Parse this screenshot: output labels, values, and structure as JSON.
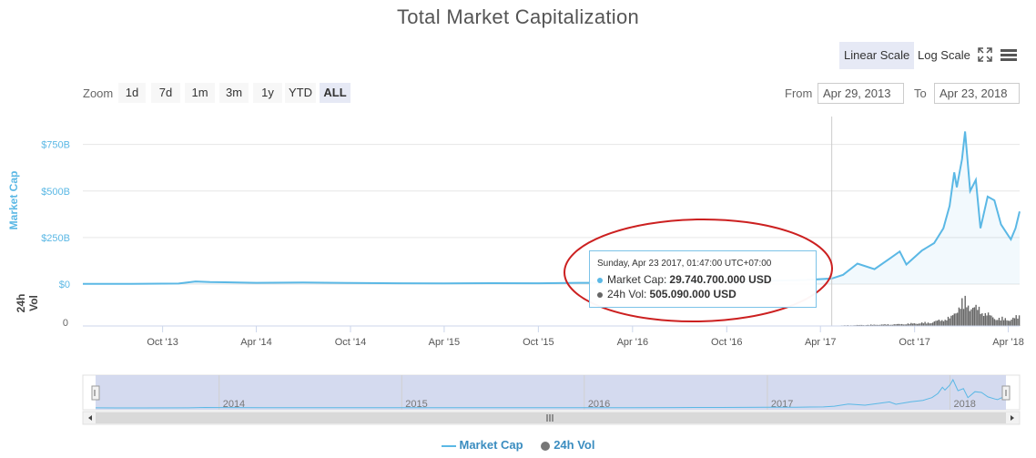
{
  "title": "Total Market Capitalization",
  "toolbar": {
    "linear_label": "Linear Scale",
    "log_label": "Log Scale",
    "fullscreen_icon": "fullscreen-icon",
    "menu_icon": "menu-icon"
  },
  "zoom": {
    "label": "Zoom",
    "options": [
      "1d",
      "7d",
      "1m",
      "3m",
      "1y",
      "YTD",
      "ALL"
    ],
    "selected": "ALL"
  },
  "range": {
    "from_label": "From",
    "from_value": "Apr 29, 2013",
    "to_label": "To",
    "to_value": "Apr 23, 2018"
  },
  "tooltip": {
    "date": "Sunday, Apr 23 2017, 01:47:00 UTC+07:00",
    "market_cap_label": "Market Cap:",
    "market_cap_value": "29.740.700.000 USD",
    "volume_label": "24h Vol:",
    "volume_value": "505.090.000 USD"
  },
  "legend": {
    "market_cap": "Market Cap",
    "volume": "24h Vol"
  },
  "colors": {
    "market_cap": "#5bb8e5",
    "volume": "#666666",
    "annotation": "#cc2020",
    "navigator_mask": "#ccd3ec"
  },
  "chart_data": {
    "type": "area",
    "title": "Total Market Capitalization",
    "x_tick_labels": [
      "Oct '13",
      "Apr '14",
      "Oct '14",
      "Apr '15",
      "Oct '15",
      "Apr '16",
      "Oct '16",
      "Apr '17",
      "Oct '17",
      "Apr '18"
    ],
    "navigator_labels": [
      "2014",
      "2015",
      "2016",
      "2017",
      "2018"
    ],
    "y_axis": {
      "label": "Market Cap",
      "tick_labels": [
        "$0",
        "$250B",
        "$500B",
        "$750B"
      ],
      "unit": "billion USD",
      "range": [
        0,
        900
      ]
    },
    "y2_axis": {
      "label": "24h Vol",
      "tick_labels": [
        "0"
      ]
    },
    "x_range": [
      "2013-04-29",
      "2018-04-23"
    ],
    "grid": true,
    "series": [
      {
        "name": "Market Cap",
        "values": [
          [
            "2013-04-29",
            1.6
          ],
          [
            "2013-08-01",
            1.3
          ],
          [
            "2013-11-01",
            3.0
          ],
          [
            "2013-12-04",
            14.0
          ],
          [
            "2014-01-01",
            11.0
          ],
          [
            "2014-04-01",
            7.0
          ],
          [
            "2014-07-01",
            9.0
          ],
          [
            "2014-10-01",
            6.0
          ],
          [
            "2015-01-01",
            4.5
          ],
          [
            "2015-04-01",
            4.0
          ],
          [
            "2015-07-01",
            5.0
          ],
          [
            "2015-10-01",
            4.5
          ],
          [
            "2016-01-01",
            7.0
          ],
          [
            "2016-04-01",
            7.5
          ],
          [
            "2016-07-01",
            11.0
          ],
          [
            "2016-10-01",
            12.0
          ],
          [
            "2017-01-01",
            18.0
          ],
          [
            "2017-03-01",
            22.0
          ],
          [
            "2017-04-23",
            29.7
          ],
          [
            "2017-05-15",
            50.0
          ],
          [
            "2017-06-12",
            110.0
          ],
          [
            "2017-07-15",
            80.0
          ],
          [
            "2017-08-15",
            140.0
          ],
          [
            "2017-09-02",
            175.0
          ],
          [
            "2017-09-15",
            105.0
          ],
          [
            "2017-10-15",
            180.0
          ],
          [
            "2017-11-08",
            220.0
          ],
          [
            "2017-11-26",
            300.0
          ],
          [
            "2017-12-08",
            420.0
          ],
          [
            "2017-12-17",
            600.0
          ],
          [
            "2017-12-22",
            520.0
          ],
          [
            "2018-01-01",
            670.0
          ],
          [
            "2018-01-07",
            820.0
          ],
          [
            "2018-01-17",
            500.0
          ],
          [
            "2018-01-28",
            560.0
          ],
          [
            "2018-02-06",
            300.0
          ],
          [
            "2018-02-20",
            470.0
          ],
          [
            "2018-03-05",
            450.0
          ],
          [
            "2018-03-18",
            320.0
          ],
          [
            "2018-04-01",
            260.0
          ],
          [
            "2018-04-06",
            240.0
          ],
          [
            "2018-04-15",
            300.0
          ],
          [
            "2018-04-23",
            390.0
          ]
        ]
      },
      {
        "name": "24h Vol",
        "values": [
          [
            "2017-04-23",
            0.5
          ],
          [
            "2017-07-01",
            1.5
          ],
          [
            "2017-09-01",
            2.5
          ],
          [
            "2017-11-01",
            5.0
          ],
          [
            "2017-12-10",
            12.0
          ],
          [
            "2017-12-22",
            25.0
          ],
          [
            "2018-01-05",
            35.0
          ],
          [
            "2018-01-17",
            28.0
          ],
          [
            "2018-02-06",
            22.0
          ],
          [
            "2018-03-01",
            12.0
          ],
          [
            "2018-04-01",
            9.0
          ],
          [
            "2018-04-23",
            14.0
          ]
        ]
      }
    ],
    "highlight_date": "2017-04-23"
  }
}
